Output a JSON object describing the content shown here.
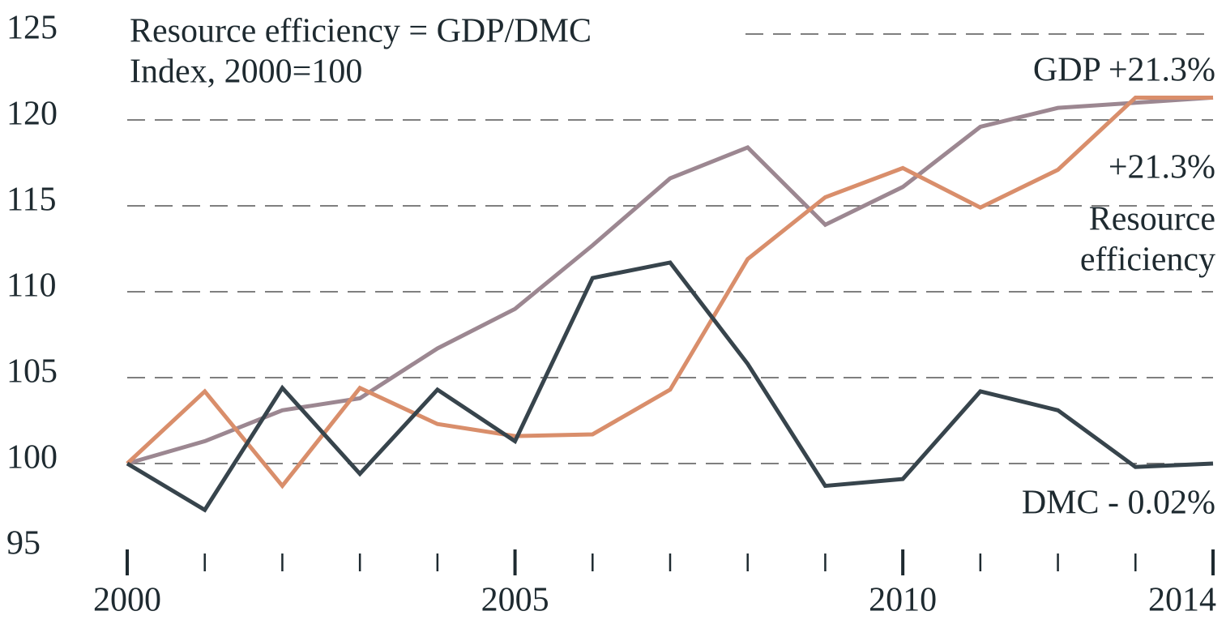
{
  "chart_data": {
    "type": "line",
    "title": [
      "Resource efficiency = GDP/DMC",
      "Index, 2000=100"
    ],
    "x": [
      2000,
      2001,
      2002,
      2003,
      2004,
      2005,
      2006,
      2007,
      2008,
      2009,
      2010,
      2011,
      2012,
      2013,
      2014
    ],
    "series": [
      {
        "name": "GDP",
        "color": "#9c8791",
        "values": [
          100,
          101.3,
          103.1,
          103.8,
          106.7,
          109.0,
          112.7,
          116.6,
          118.4,
          113.9,
          116.1,
          119.6,
          120.7,
          121.0,
          121.3
        ]
      },
      {
        "name": "Resource efficiency",
        "color": "#d98e6b",
        "values": [
          100,
          104.2,
          98.7,
          104.4,
          102.3,
          101.6,
          101.7,
          104.3,
          111.9,
          115.5,
          117.2,
          114.9,
          117.1,
          121.3,
          121.3
        ]
      },
      {
        "name": "DMC",
        "color": "#37444c",
        "values": [
          100,
          97.3,
          104.4,
          99.4,
          104.3,
          101.3,
          110.8,
          111.7,
          105.8,
          98.7,
          99.1,
          104.2,
          103.1,
          99.8,
          100.0
        ]
      }
    ],
    "annotations": [
      "GDP +21.3%",
      "+21.3%",
      "Resource",
      "efficiency",
      "DMC - 0.02%"
    ],
    "xlim": [
      2000,
      2014
    ],
    "xticks": [
      2000,
      2005,
      2010,
      2014
    ],
    "xminorticks": [
      2000,
      2001,
      2002,
      2003,
      2004,
      2005,
      2006,
      2007,
      2008,
      2009,
      2010,
      2011,
      2012,
      2013,
      2014
    ],
    "ylim": [
      95,
      125
    ],
    "yticks": [
      95,
      100,
      105,
      110,
      115,
      120,
      125
    ],
    "grid": true
  }
}
